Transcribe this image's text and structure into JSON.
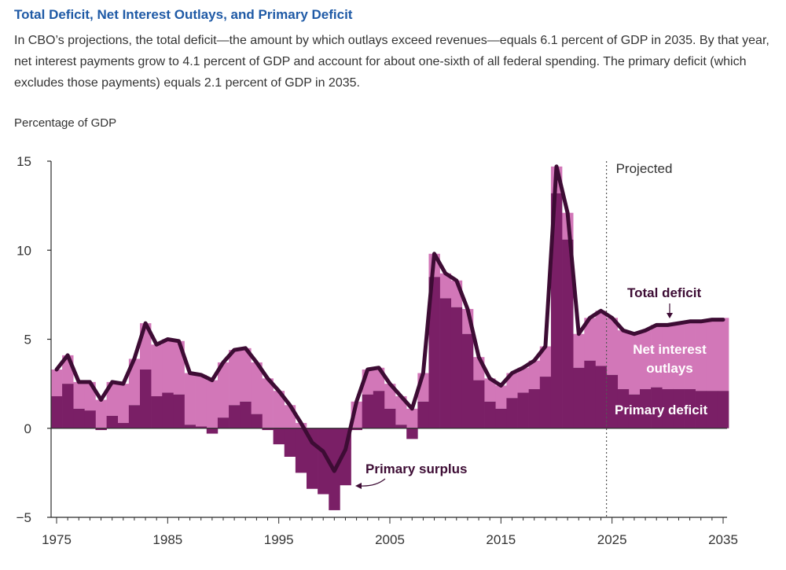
{
  "header": {
    "title": "Total Deficit, Net Interest Outlays, and Primary Deficit",
    "subtitle": "In CBO’s projections, the total deficit—the amount by which outlays exceed revenues—equals 6.1 percent of GDP in 2035. By that year, net interest payments grow to 4.1 percent of GDP and account for about one-sixth of all federal spending. The primary deficit (which excludes those payments) equals 2.1 percent of GDP in 2035."
  },
  "colors": {
    "primary": "#7a1f66",
    "interest": "#d277b8",
    "total_line": "#3d0c34",
    "annotation_white": "#ffffff",
    "annotation_dark": "#3d0c34"
  },
  "chart_data": {
    "type": "area",
    "ylabel": "Percentage of GDP",
    "ylim": [
      -5,
      15
    ],
    "yticks": [
      -5,
      0,
      5,
      10,
      15
    ],
    "xlim": [
      1975,
      2035
    ],
    "xticks": [
      1975,
      1985,
      1995,
      2005,
      2015,
      2025,
      2035
    ],
    "projection_start": 2025,
    "projected_label": "Projected",
    "annotations": {
      "total": "Total deficit",
      "interest_line1": "Net interest",
      "interest_line2": "outlays",
      "primary": "Primary deficit",
      "surplus": "Primary surplus"
    },
    "x": [
      1975,
      1976,
      1977,
      1978,
      1979,
      1980,
      1981,
      1982,
      1983,
      1984,
      1985,
      1986,
      1987,
      1988,
      1989,
      1990,
      1991,
      1992,
      1993,
      1994,
      1995,
      1996,
      1997,
      1998,
      1999,
      2000,
      2001,
      2002,
      2003,
      2004,
      2005,
      2006,
      2007,
      2008,
      2009,
      2010,
      2011,
      2012,
      2013,
      2014,
      2015,
      2016,
      2017,
      2018,
      2019,
      2020,
      2021,
      2022,
      2023,
      2024,
      2025,
      2026,
      2027,
      2028,
      2029,
      2030,
      2031,
      2032,
      2033,
      2034,
      2035
    ],
    "series": [
      {
        "name": "Total deficit",
        "values": [
          3.3,
          4.1,
          2.6,
          2.6,
          1.6,
          2.6,
          2.5,
          3.9,
          5.9,
          4.7,
          5.0,
          4.9,
          3.1,
          3.0,
          2.7,
          3.7,
          4.4,
          4.5,
          3.7,
          2.8,
          2.1,
          1.3,
          0.3,
          -0.8,
          -1.3,
          -2.4,
          -1.2,
          1.5,
          3.3,
          3.4,
          2.5,
          1.8,
          1.1,
          3.1,
          9.8,
          8.7,
          8.3,
          6.7,
          4.0,
          2.8,
          2.4,
          3.1,
          3.4,
          3.8,
          4.6,
          14.7,
          12.1,
          5.3,
          6.2,
          6.6,
          6.2,
          5.5,
          5.3,
          5.5,
          5.8,
          5.8,
          5.9,
          6.0,
          6.0,
          6.1,
          6.1
        ]
      },
      {
        "name": "Net interest outlays",
        "values": [
          1.5,
          1.6,
          1.5,
          1.6,
          1.7,
          1.9,
          2.2,
          2.6,
          2.6,
          2.9,
          3.0,
          3.0,
          2.9,
          2.9,
          3.0,
          3.1,
          3.1,
          3.0,
          2.9,
          2.9,
          3.0,
          2.9,
          2.8,
          2.6,
          2.4,
          2.2,
          2.0,
          1.6,
          1.4,
          1.3,
          1.4,
          1.6,
          1.7,
          1.6,
          1.3,
          1.4,
          1.5,
          1.4,
          1.3,
          1.3,
          1.3,
          1.4,
          1.4,
          1.6,
          1.7,
          1.5,
          1.5,
          1.9,
          2.4,
          3.1,
          3.2,
          3.3,
          3.4,
          3.3,
          3.5,
          3.6,
          3.7,
          3.8,
          3.9,
          4.0,
          4.1
        ]
      },
      {
        "name": "Primary deficit",
        "values": [
          1.8,
          2.5,
          1.1,
          1.0,
          -0.1,
          0.7,
          0.3,
          1.3,
          3.3,
          1.8,
          2.0,
          1.9,
          0.2,
          0.1,
          -0.3,
          0.6,
          1.3,
          1.5,
          0.8,
          -0.1,
          -0.9,
          -1.6,
          -2.5,
          -3.4,
          -3.7,
          -4.6,
          -3.2,
          -0.1,
          1.9,
          2.1,
          1.1,
          0.2,
          -0.6,
          1.5,
          8.5,
          7.3,
          6.8,
          5.3,
          2.7,
          1.5,
          1.1,
          1.7,
          2.0,
          2.2,
          2.9,
          13.2,
          10.6,
          3.4,
          3.8,
          3.5,
          3.0,
          2.2,
          1.9,
          2.2,
          2.3,
          2.2,
          2.2,
          2.2,
          2.1,
          2.1,
          2.1
        ]
      }
    ]
  }
}
